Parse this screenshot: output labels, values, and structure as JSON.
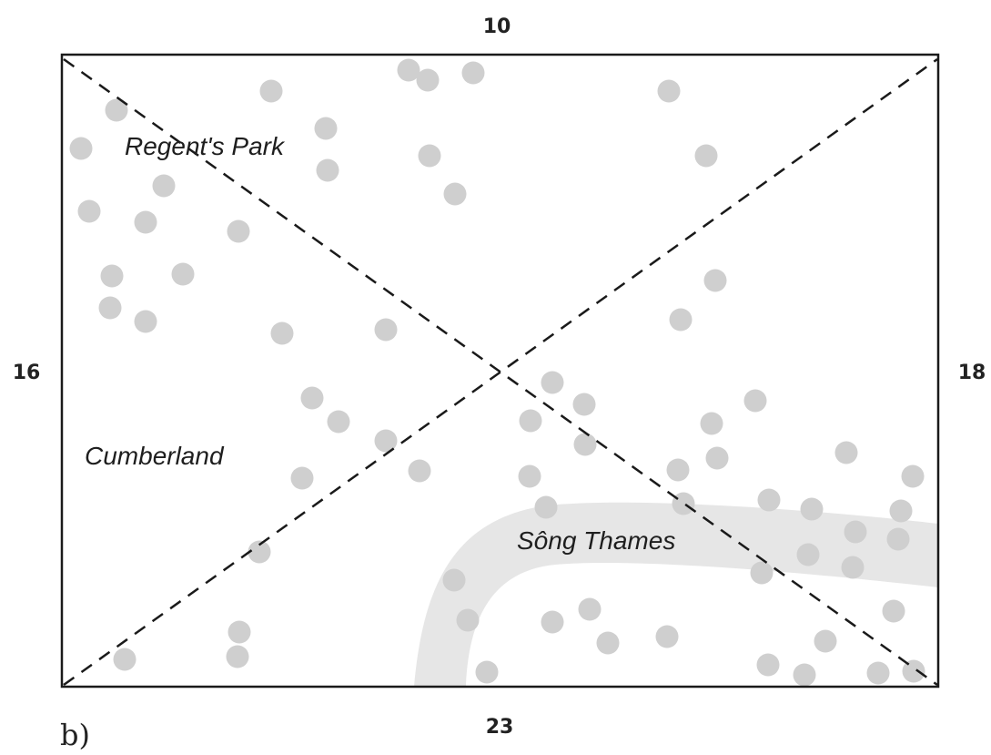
{
  "figure_label": "b)",
  "edge_counts": {
    "top": "10",
    "left": "16",
    "right": "18",
    "bottom": "23"
  },
  "places": {
    "regents_park": "Regent's Park",
    "cumberland": "Cumberland",
    "thames": "Sông Thames"
  },
  "colors": {
    "frame": "#1a1a1a",
    "dashed_line": "#1a1a1a",
    "dot": "#cfcfcf",
    "river": "#e6e6e6"
  }
}
